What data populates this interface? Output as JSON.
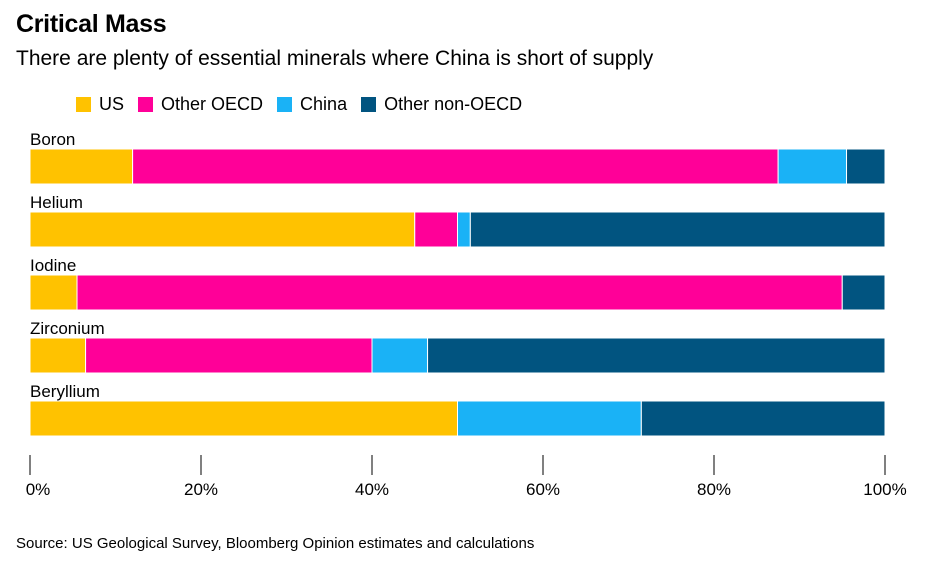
{
  "chart_data": {
    "type": "bar",
    "orientation": "horizontal",
    "stacked": true,
    "title": "Critical Mass",
    "subtitle": "There are plenty of essential minerals where China is short of supply",
    "source": "Source: US Geological Survey, Bloomberg Opinion estimates and calculations",
    "categories": [
      "Boron",
      "Helium",
      "Iodine",
      "Zirconium",
      "Beryllium"
    ],
    "series": [
      {
        "name": "US",
        "color": "#FFC200",
        "values": [
          12,
          45,
          5.5,
          6.5,
          50
        ]
      },
      {
        "name": "Other OECD",
        "color": "#FF0098",
        "values": [
          75.5,
          5,
          89.5,
          33.5,
          0
        ]
      },
      {
        "name": "China",
        "color": "#1AB2F6",
        "values": [
          8,
          1.5,
          0,
          6.5,
          21.5
        ]
      },
      {
        "name": "Other non-OECD",
        "color": "#015480",
        "values": [
          4.5,
          48.5,
          5,
          53.5,
          28.5
        ]
      }
    ],
    "xlim": [
      0,
      100
    ],
    "xticks": [
      0,
      20,
      40,
      60,
      80,
      100
    ],
    "xtick_labels": [
      "0%",
      "20%",
      "40%",
      "60%",
      "80%",
      "100%"
    ],
    "grid": false,
    "legend_position": "top-left",
    "xlabel": "",
    "ylabel": ""
  }
}
